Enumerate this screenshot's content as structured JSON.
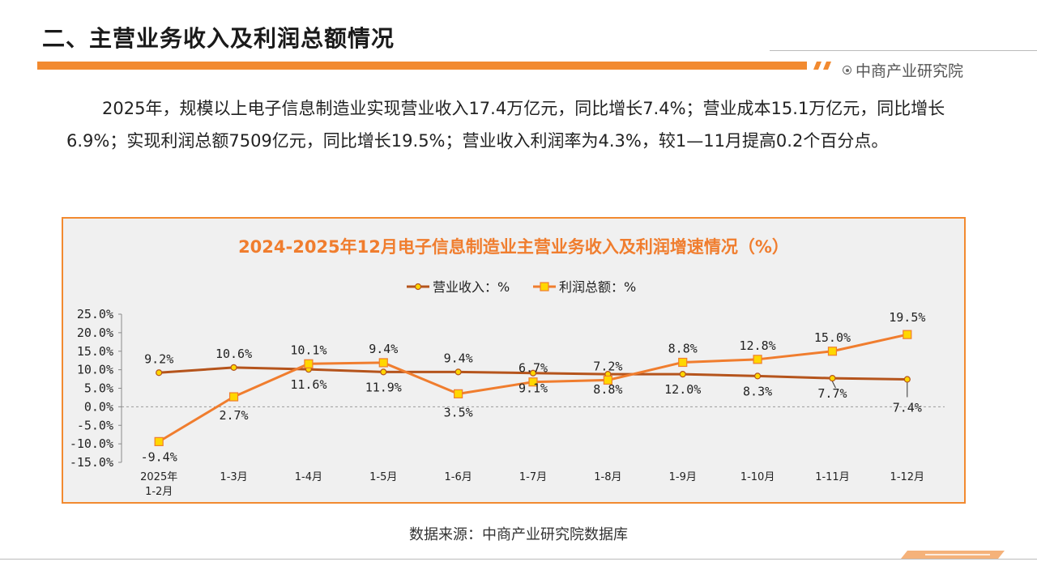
{
  "header": {
    "title": "二、主营业务收入及利润总额情况",
    "brand": "中商产业研究院"
  },
  "intro_text": "2025年，规模以上电子信息制造业实现营业收入17.4万亿元，同比增长7.4%；营业成本15.1万亿元，同比增长6.9%；实现利润总额7509亿元，同比增长19.5%；营业收入利润率为4.3%，较1—11月提高0.2个百分点。",
  "colors": {
    "accent": "#f28a30",
    "revenue_line": "#b5541c",
    "profit_line": "#f07d2e",
    "profit_marker": "#ffd700"
  },
  "chart_data": {
    "type": "line",
    "title": "2024-2025年12月电子信息制造业主营业务收入及利润增速情况（%）",
    "categories": [
      [
        "2025年",
        "1-2月"
      ],
      [
        "1-3月"
      ],
      [
        "1-4月"
      ],
      [
        "1-5月"
      ],
      [
        "1-6月"
      ],
      [
        "1-7月"
      ],
      [
        "1-8月"
      ],
      [
        "1-9月"
      ],
      [
        "1-10月"
      ],
      [
        "1-11月"
      ],
      [
        "1-12月"
      ]
    ],
    "series": [
      {
        "name": "营业收入：%",
        "values": [
          9.2,
          10.6,
          10.1,
          9.4,
          9.4,
          9.1,
          8.8,
          8.8,
          8.3,
          7.7,
          7.4
        ],
        "labels": [
          "9.2%",
          "10.6%",
          "10.1%",
          "9.4%",
          "9.4%",
          "9.1%",
          "8.8%",
          "8.8%",
          "8.3%",
          "7.7%",
          "7.4%"
        ]
      },
      {
        "name": "利润总额：%",
        "values": [
          -9.4,
          2.7,
          11.6,
          11.9,
          3.5,
          6.7,
          7.2,
          12.0,
          12.8,
          15.0,
          19.5
        ],
        "labels": [
          "-9.4%",
          "2.7%",
          "11.6%",
          "11.9%",
          "3.5%",
          "6.7%",
          "7.2%",
          "12.0%",
          "12.8%",
          "15.0%",
          "19.5%"
        ]
      }
    ],
    "yticks": [
      "25.0%",
      "20.0%",
      "15.0%",
      "10.0%",
      "5.0%",
      "0.0%",
      "-5.0%",
      "-10.0%",
      "-15.0%"
    ],
    "ylim": [
      -15,
      25
    ],
    "legend_position": "top"
  },
  "source_text": "数据来源：中商产业研究院数据库"
}
